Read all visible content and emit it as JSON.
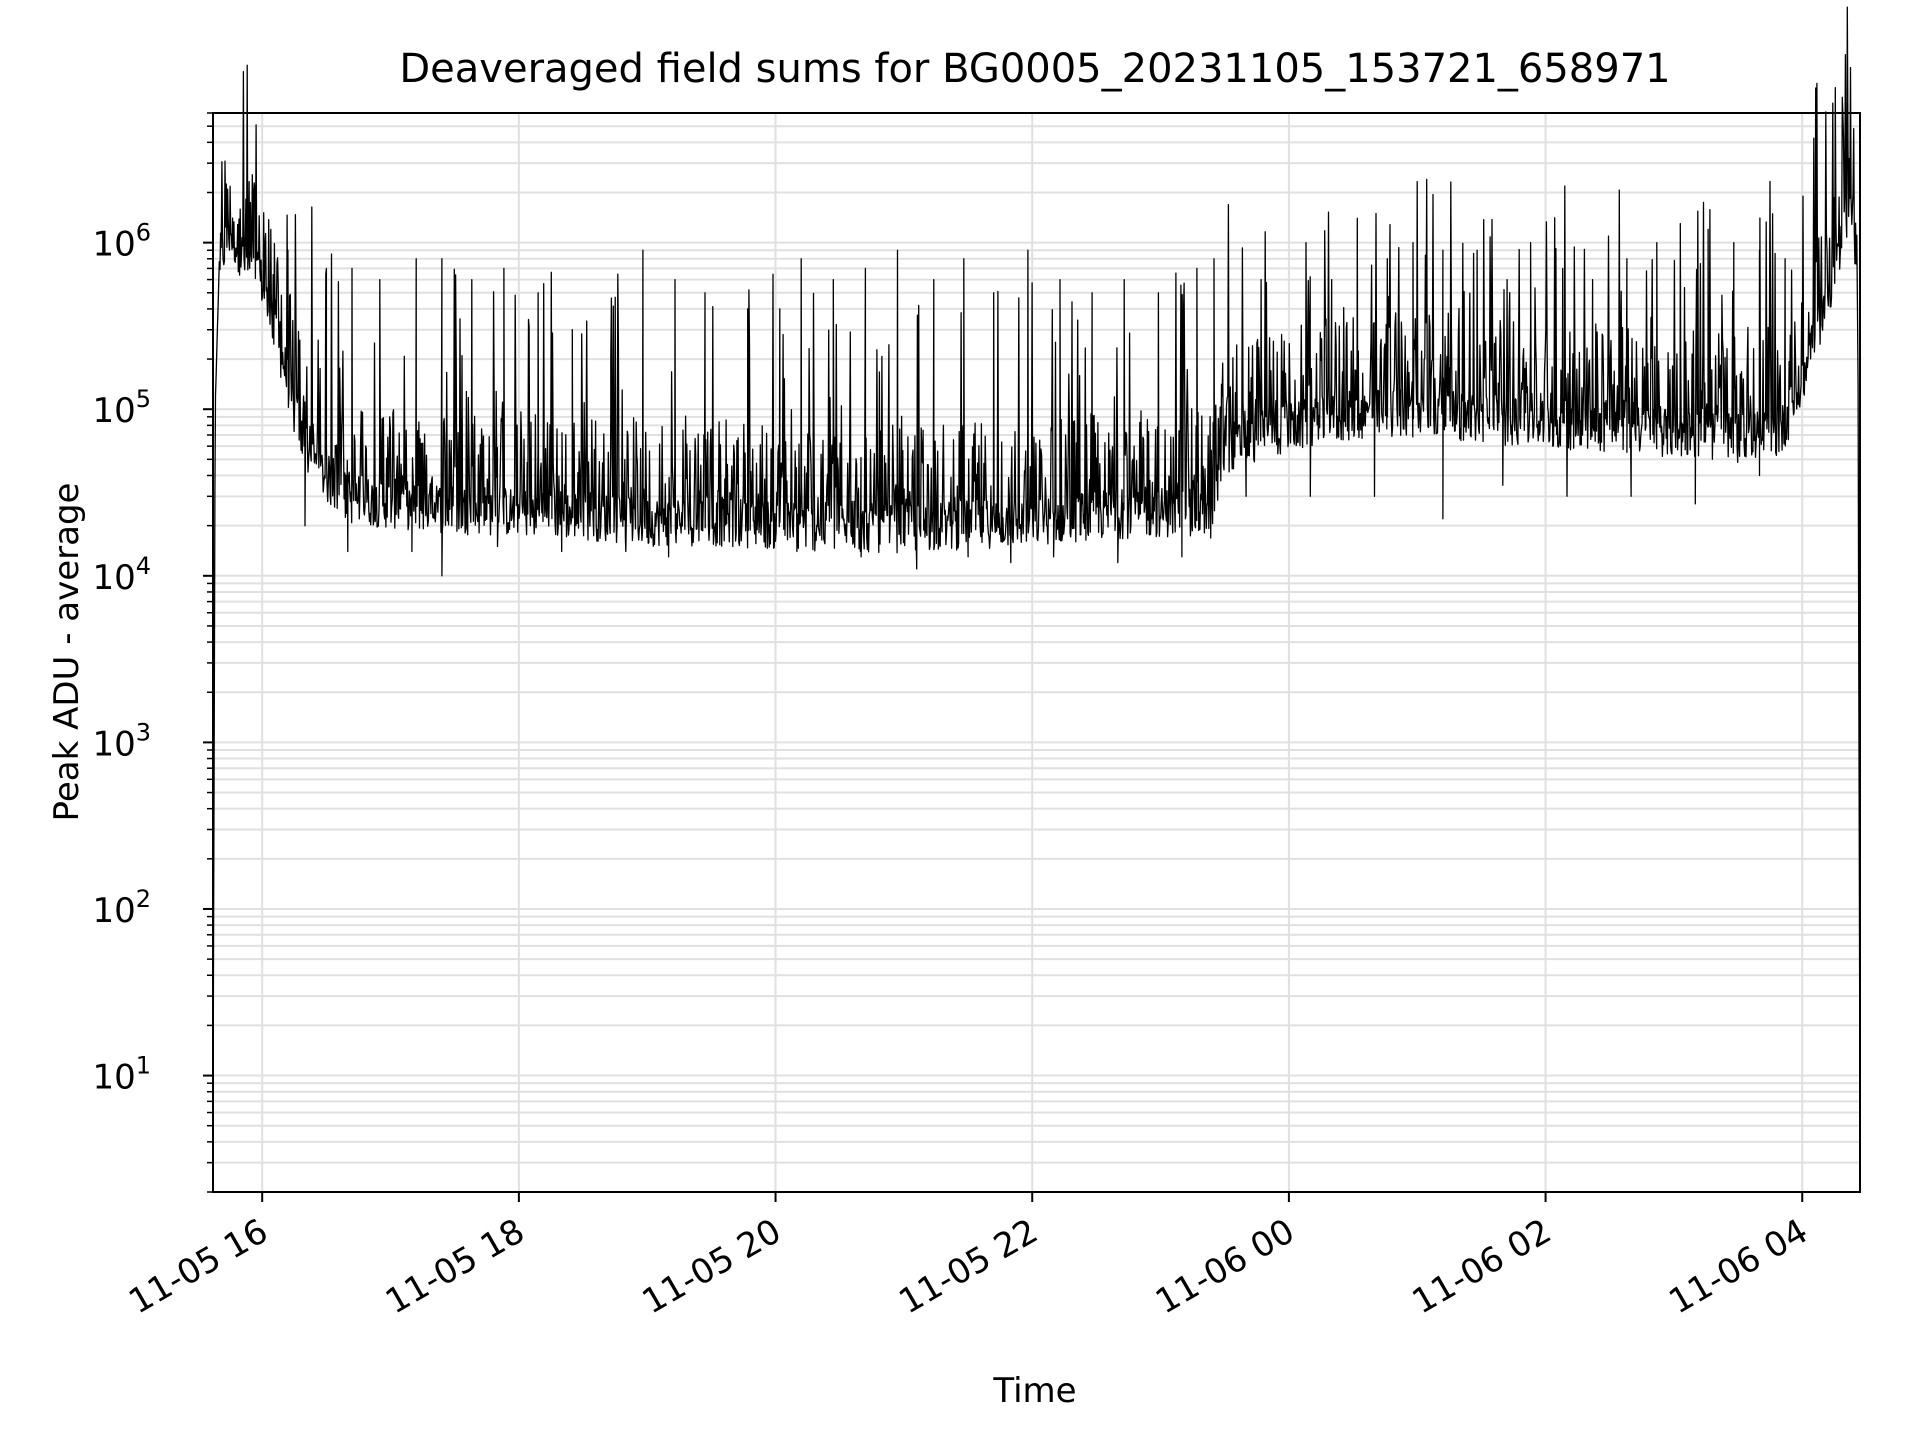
{
  "chart_data": {
    "type": "line",
    "title": "Deaveraged field sums for BG0005_20231105_153721_658971",
    "xlabel": "Time",
    "ylabel": "Peak ADU - average",
    "y_scale": "log",
    "ylim": [
      2,
      6000000
    ],
    "xlim": [
      "2023-11-05 15:37",
      "2023-11-06 04:27"
    ],
    "grid": "on",
    "line_color": "#000000",
    "grid_color": "#e0e0e0",
    "x_ticks": [
      {
        "value": "2023-11-05 16:00",
        "label": "11-05 16"
      },
      {
        "value": "2023-11-05 18:00",
        "label": "11-05 18"
      },
      {
        "value": "2023-11-05 20:00",
        "label": "11-05 20"
      },
      {
        "value": "2023-11-05 22:00",
        "label": "11-05 22"
      },
      {
        "value": "2023-11-06 00:00",
        "label": "11-06 00"
      },
      {
        "value": "2023-11-06 02:00",
        "label": "11-06 02"
      },
      {
        "value": "2023-11-06 04:00",
        "label": "11-06 04"
      }
    ],
    "y_ticks": [
      {
        "value": 10,
        "base": "10",
        "exp": "1"
      },
      {
        "value": 100,
        "base": "10",
        "exp": "2"
      },
      {
        "value": 1000,
        "base": "10",
        "exp": "3"
      },
      {
        "value": 10000,
        "base": "10",
        "exp": "4"
      },
      {
        "value": 100000,
        "base": "10",
        "exp": "5"
      },
      {
        "value": 1000000,
        "base": "10",
        "exp": "6"
      }
    ],
    "series": [
      {
        "x": [
          "2023-11-05 15:37",
          "2023-11-05 15:38",
          "2023-11-05 15:40",
          "2023-11-05 15:45",
          "2023-11-05 15:50",
          "2023-11-05 15:55",
          "2023-11-05 16:00",
          "2023-11-05 16:05",
          "2023-11-05 16:10",
          "2023-11-05 16:15",
          "2023-11-05 16:20",
          "2023-11-05 16:30",
          "2023-11-05 16:40",
          "2023-11-05 17:00",
          "2023-11-05 17:30",
          "2023-11-05 18:00",
          "2023-11-05 18:30",
          "2023-11-05 19:00",
          "2023-11-05 19:30",
          "2023-11-05 20:00",
          "2023-11-05 20:30",
          "2023-11-05 21:00",
          "2023-11-05 21:30",
          "2023-11-05 22:00",
          "2023-11-05 22:30",
          "2023-11-05 23:00",
          "2023-11-05 23:25",
          "2023-11-05 23:30",
          "2023-11-05 23:45",
          "2023-11-06 00:00",
          "2023-11-06 00:30",
          "2023-11-06 01:00",
          "2023-11-06 01:30",
          "2023-11-06 02:00",
          "2023-11-06 02:30",
          "2023-11-06 03:00",
          "2023-11-06 03:30",
          "2023-11-06 03:50",
          "2023-11-06 04:00",
          "2023-11-06 04:10",
          "2023-11-06 04:20",
          "2023-11-06 04:24",
          "2023-11-06 04:26",
          "2023-11-06 04:27"
        ],
        "y": [
          4,
          100000,
          800000,
          1200000,
          900000,
          700000,
          600000,
          300000,
          200000,
          100000,
          60000,
          40000,
          30000,
          28000,
          26000,
          25000,
          24000,
          22000,
          22000,
          21000,
          20000,
          20000,
          21000,
          22000,
          24000,
          25000,
          24000,
          60000,
          70000,
          80000,
          95000,
          100000,
          90000,
          85000,
          80000,
          75000,
          70000,
          75000,
          150000,
          400000,
          1200000,
          1500000,
          500000,
          4
        ],
        "spikes": [
          [
            "2023-11-05 15:56",
            2000000
          ],
          [
            "2023-11-05 16:04",
            1200000
          ],
          [
            "2023-11-05 16:12",
            900000
          ],
          [
            "2023-11-05 16:30",
            700000
          ],
          [
            "2023-11-05 16:42",
            700000
          ],
          [
            "2023-11-05 16:55",
            600000
          ],
          [
            "2023-11-05 17:12",
            800000
          ],
          [
            "2023-11-05 17:24",
            800000
          ],
          [
            "2023-11-05 17:38",
            600000
          ],
          [
            "2023-11-05 17:53",
            700000
          ],
          [
            "2023-11-05 18:09",
            500000
          ],
          [
            "2023-11-05 18:25",
            300000
          ],
          [
            "2023-11-05 18:43",
            200000
          ],
          [
            "2023-11-05 18:58",
            900000
          ],
          [
            "2023-11-05 19:13",
            600000
          ],
          [
            "2023-11-05 19:27",
            500000
          ],
          [
            "2023-11-05 19:47",
            400000
          ],
          [
            "2023-11-05 20:02",
            400000
          ],
          [
            "2023-11-05 20:12",
            800000
          ],
          [
            "2023-11-05 20:27",
            600000
          ],
          [
            "2023-11-05 20:42",
            700000
          ],
          [
            "2023-11-05 20:57",
            900000
          ],
          [
            "2023-11-05 21:14",
            600000
          ],
          [
            "2023-11-05 21:28",
            800000
          ],
          [
            "2023-11-05 21:42",
            500000
          ],
          [
            "2023-11-05 21:58",
            900000
          ],
          [
            "2023-11-05 22:13",
            600000
          ],
          [
            "2023-11-05 22:28",
            500000
          ],
          [
            "2023-11-05 22:43",
            600000
          ],
          [
            "2023-11-05 22:59",
            500000
          ],
          [
            "2023-11-05 23:17",
            700000
          ],
          [
            "2023-11-05 23:25",
            800000
          ],
          [
            "2023-11-05 23:47",
            600000
          ],
          [
            "2023-11-06 00:08",
            1000000
          ],
          [
            "2023-11-06 00:20",
            600000
          ],
          [
            "2023-11-06 00:32",
            1400000
          ],
          [
            "2023-11-06 00:46",
            800000
          ],
          [
            "2023-11-06 00:58",
            1000000
          ],
          [
            "2023-11-06 01:12",
            900000
          ],
          [
            "2023-11-06 01:28",
            900000
          ],
          [
            "2023-11-06 01:42",
            600000
          ],
          [
            "2023-11-06 01:53",
            1000000
          ],
          [
            "2023-11-06 02:08",
            700000
          ],
          [
            "2023-11-06 02:22",
            600000
          ],
          [
            "2023-11-06 02:38",
            800000
          ],
          [
            "2023-11-06 02:52",
            1000000
          ],
          [
            "2023-11-06 03:03",
            1300000
          ],
          [
            "2023-11-06 03:16",
            1200000
          ],
          [
            "2023-11-06 03:28",
            1000000
          ],
          [
            "2023-11-06 03:40",
            900000
          ],
          [
            "2023-11-06 03:52",
            800000
          ],
          [
            "2023-11-06 04:22",
            3200000
          ]
        ],
        "dips": [
          [
            "2023-11-05 16:20",
            20000
          ],
          [
            "2023-11-05 16:40",
            14000
          ],
          [
            "2023-11-05 17:10",
            14000
          ],
          [
            "2023-11-05 17:24",
            10000
          ],
          [
            "2023-11-05 17:50",
            15000
          ],
          [
            "2023-11-05 18:20",
            14000
          ],
          [
            "2023-11-05 18:50",
            14000
          ],
          [
            "2023-11-05 19:10",
            13000
          ],
          [
            "2023-11-05 19:40",
            15000
          ],
          [
            "2023-11-05 20:10",
            14000
          ],
          [
            "2023-11-05 20:40",
            13000
          ],
          [
            "2023-11-05 21:06",
            11000
          ],
          [
            "2023-11-05 21:30",
            13000
          ],
          [
            "2023-11-05 21:50",
            12000
          ],
          [
            "2023-11-05 22:10",
            13000
          ],
          [
            "2023-11-05 22:40",
            12000
          ],
          [
            "2023-11-05 23:10",
            13000
          ],
          [
            "2023-11-05 23:40",
            30000
          ],
          [
            "2023-11-06 00:10",
            30000
          ],
          [
            "2023-11-06 00:40",
            30000
          ],
          [
            "2023-11-06 01:12",
            22000
          ],
          [
            "2023-11-06 01:40",
            35000
          ],
          [
            "2023-11-06 02:10",
            30000
          ],
          [
            "2023-11-06 02:40",
            30000
          ],
          [
            "2023-11-06 03:10",
            27000
          ],
          [
            "2023-11-06 03:40",
            40000
          ]
        ]
      }
    ]
  }
}
